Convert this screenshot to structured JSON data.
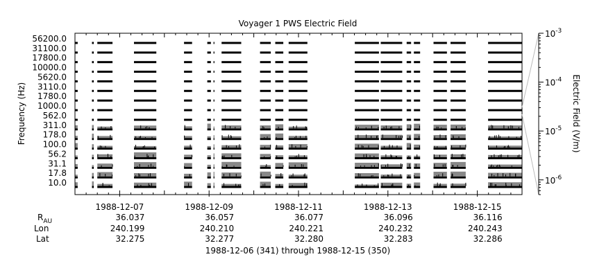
{
  "chart_data": {
    "type": "heatmap",
    "title": "Voyager 1 PWS Electric Field",
    "ylabel": "Frequency (Hz)",
    "colorbar_label": "Electric Field (V/m)",
    "channels": [
      "56200.0",
      "31100.0",
      "17800.0",
      "10000.0",
      "5620.0",
      "3110.0",
      "1780.0",
      "1000.0",
      "562.0",
      "311.0",
      "178.0",
      "100.0",
      "56.2",
      "31.1",
      "17.8",
      "10.0"
    ],
    "colorbar_ticks": [
      {
        "base": "10",
        "exp": "-3",
        "value": 0.001
      },
      {
        "base": "10",
        "exp": "-4",
        "value": 0.0001
      },
      {
        "base": "10",
        "exp": "-5",
        "value": 1e-05
      },
      {
        "base": "10",
        "exp": "-6",
        "value": 1e-06
      }
    ],
    "colorbar_range": [
      5e-07,
      0.001
    ],
    "colorbar_scale": "log",
    "x_range_days": [
      0,
      10
    ],
    "x_ticks": [
      {
        "day": 1,
        "label": "1988-12-07",
        "rau": "36.037",
        "lon": "240.199",
        "lat": "32.275"
      },
      {
        "day": 3,
        "label": "1988-12-09",
        "rau": "36.057",
        "lon": "240.210",
        "lat": "32.277"
      },
      {
        "day": 5,
        "label": "1988-12-11",
        "rau": "36.077",
        "lon": "240.221",
        "lat": "32.280"
      },
      {
        "day": 7,
        "label": "1988-12-13",
        "rau": "36.096",
        "lon": "240.232",
        "lat": "32.283"
      },
      {
        "day": 9,
        "label": "1988-12-15",
        "rau": "36.116",
        "lon": "240.243",
        "lat": "32.286"
      }
    ],
    "data_segments_days": [
      [
        0.0,
        0.06
      ],
      [
        0.38,
        0.42
      ],
      [
        0.5,
        0.84
      ],
      [
        1.32,
        1.82
      ],
      [
        2.44,
        2.62
      ],
      [
        2.96,
        3.04
      ],
      [
        3.1,
        3.12
      ],
      [
        3.28,
        3.72
      ],
      [
        4.14,
        4.38
      ],
      [
        4.48,
        4.66
      ],
      [
        4.78,
        5.2
      ],
      [
        6.26,
        6.8
      ],
      [
        6.84,
        7.32
      ],
      [
        7.42,
        7.52
      ],
      [
        7.58,
        7.72
      ],
      [
        8.02,
        8.32
      ],
      [
        8.4,
        8.74
      ],
      [
        9.24,
        10.0
      ]
    ],
    "ephemeris_labels": {
      "rau": "R",
      "rau_sub": "AU",
      "lon": "Lon",
      "lat": "Lat"
    },
    "time_range_label": "1988-12-06 (341) through 1988-12-15 (350)"
  }
}
